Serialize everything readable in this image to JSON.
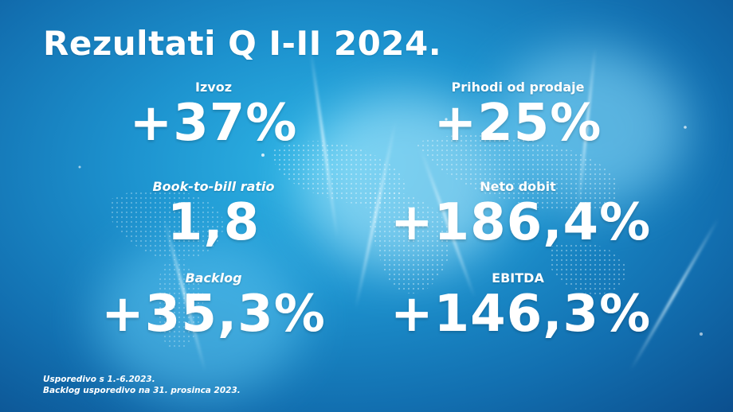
{
  "title": "Rezultati Q I-II 2024.",
  "metrics": [
    {
      "label": "Izvoz",
      "value": "+37%"
    },
    {
      "label": "Prihodi od prodaje",
      "value": "+25%"
    },
    {
      "label": "Book-to-bill ratio",
      "value": "1,8"
    },
    {
      "label": "Neto dobit",
      "value": "+186,4%"
    },
    {
      "label": "Backlog",
      "value": "+35,3%"
    },
    {
      "label": "EBITDA",
      "value": "+146,3%"
    }
  ],
  "footnotes": [
    "Usporedivo s 1.-6.2023.",
    "Backlog usporedivo na 31. prosinca 2023."
  ],
  "colors": {
    "background_light": "#2fb6e6",
    "background_dark": "#0b4f8e",
    "text": "#ffffff"
  }
}
